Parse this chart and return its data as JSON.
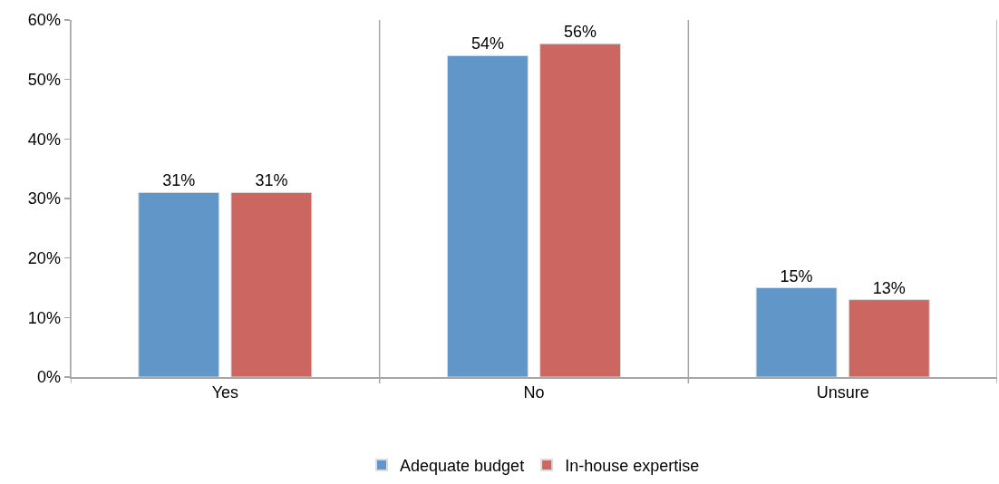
{
  "chart_data": {
    "type": "bar",
    "categories": [
      "Yes",
      "No",
      "Unsure"
    ],
    "series": [
      {
        "name": "Adequate budget",
        "color": "#6196c9",
        "values": [
          31,
          54,
          15
        ],
        "value_labels": [
          "31%",
          "54%",
          "15%"
        ]
      },
      {
        "name": "In-house expertise",
        "color": "#cb6660",
        "values": [
          31,
          56,
          13
        ],
        "value_labels": [
          "31%",
          "56%",
          "13%"
        ]
      }
    ],
    "ylim": [
      0,
      60
    ],
    "yticks": [
      {
        "value": 0,
        "label": "0%"
      },
      {
        "value": 10,
        "label": "10%"
      },
      {
        "value": 20,
        "label": "20%"
      },
      {
        "value": 30,
        "label": "30%"
      },
      {
        "value": 40,
        "label": "40%"
      },
      {
        "value": 50,
        "label": "50%"
      },
      {
        "value": 60,
        "label": "60%"
      }
    ],
    "grid": "x",
    "legend": "bottom"
  }
}
